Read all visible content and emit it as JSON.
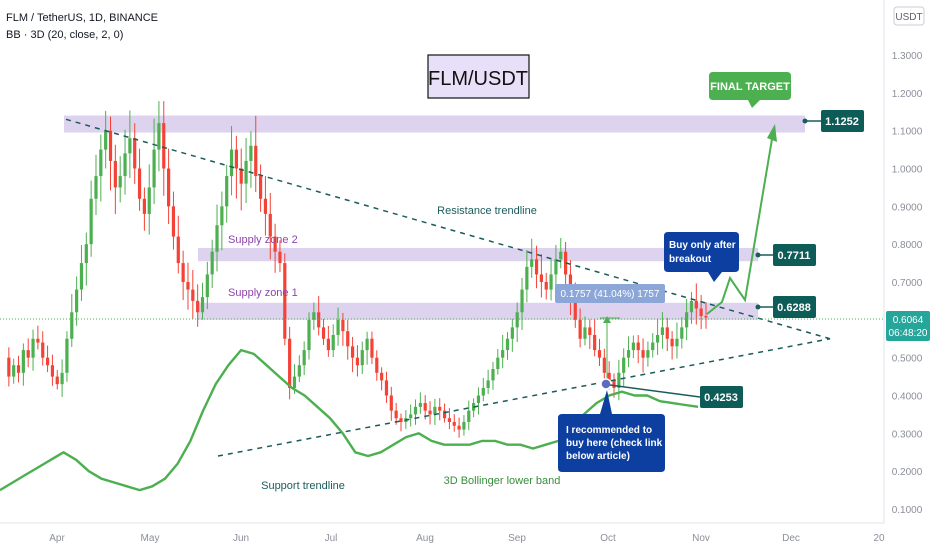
{
  "header": {
    "symbol_line": "FLM / TetherUS, 1D, BINANCE",
    "indicator_line": "BB · 3D (20, close, 2, 0)",
    "currency": "USDT"
  },
  "title_box": "FLM/USDT",
  "price_tags": {
    "final_target": "1.1252",
    "supply_2": "0.7711",
    "supply_1": "0.6288",
    "buy_point": "0.4253",
    "current_price": "0.6064",
    "countdown": "06:48:20"
  },
  "annotations": {
    "resistance": "Resistance trendline",
    "support": "Support trendline",
    "supply_zone_2": "Supply zone 2",
    "supply_zone_1": "Supply zone 1",
    "bb_lower": "3D Bollinger lower band",
    "final_target": "FINAL TARGET",
    "buy_after": [
      "Buy only after",
      "breakout"
    ],
    "recommended": [
      "I recommended to",
      "buy here (check link",
      "below article)"
    ],
    "measure": "0.1757 (41.04%) 1757"
  },
  "colors": {
    "up": "#26a69a",
    "bull_candle": "#4caf50",
    "bear_candle": "#f44336",
    "bb_band": "#4caf50",
    "zone": "#d1c4e9",
    "trendline": "#1a5c5c",
    "tag_dark": "#0d5c57",
    "tag_green": "#2e7d32",
    "callout_blue": "#0d3fa0",
    "target_green": "#4caf50",
    "measure_box": "#8ca6d8"
  },
  "chart_data": {
    "type": "candlestick",
    "y_axis": {
      "scale": "linear",
      "range": [
        0.06,
        1.4
      ],
      "ticks": [
        "0.1000",
        "0.2000",
        "0.3000",
        "0.4000",
        "0.5000",
        "0.6000",
        "0.7000",
        "0.8000",
        "0.9000",
        "1.0000",
        "1.1000",
        "1.2000",
        "1.3000"
      ],
      "position": "right"
    },
    "x_axis": {
      "ticks": [
        "Apr",
        "May",
        "Jun",
        "Jul",
        "Aug",
        "Sep",
        "Oct",
        "Nov",
        "Dec",
        "20"
      ]
    },
    "horizontal_zones": [
      {
        "label": "",
        "low": 1.095,
        "high": 1.14
      },
      {
        "label": "Supply zone 2",
        "low": 0.755,
        "high": 0.79
      },
      {
        "label": "Supply zone 1",
        "low": 0.6,
        "high": 0.645
      }
    ],
    "trendlines": [
      {
        "label": "Resistance trendline",
        "from": [
          "Apr",
          1.13
        ],
        "to": [
          "mid-Dec",
          0.55
        ]
      },
      {
        "label": "Support trendline",
        "from": [
          "late May",
          0.24
        ],
        "to": [
          "mid-Dec",
          0.55
        ]
      }
    ],
    "key_levels": [
      1.1252,
      0.7711,
      0.6288,
      0.4253,
      0.6064
    ],
    "price_path": [
      [
        0.5,
        0.45,
        0.48,
        0.46,
        0.52,
        0.5,
        0.55,
        0.54,
        0.5,
        0.48,
        0.45,
        0.43,
        0.46,
        0.55,
        0.62,
        0.68,
        0.75,
        0.8,
        0.92,
        0.98,
        1.05,
        1.1,
        1.02,
        0.95,
        0.98,
        1.04,
        1.08,
        1.0,
        0.92,
        0.88,
        0.95,
        1.05,
        1.12,
        1.0,
        0.9,
        0.82,
        0.75,
        0.7,
        0.68,
        0.65,
        0.62,
        0.66,
        0.72,
        0.78,
        0.85,
        0.9,
        0.98,
        1.05,
        1.0,
        0.96,
        1.02,
        1.06,
        0.98,
        0.92,
        0.88,
        0.82,
        0.78,
        0.75,
        0.55,
        0.42,
        0.45,
        0.48,
        0.52,
        0.6,
        0.62,
        0.58,
        0.55,
        0.52,
        0.56,
        0.6,
        0.57,
        0.53,
        0.5,
        0.48,
        0.52,
        0.55,
        0.5,
        0.46,
        0.44,
        0.4,
        0.36,
        0.34,
        0.33,
        0.34,
        0.35,
        0.37,
        0.38,
        0.36,
        0.35,
        0.37,
        0.36,
        0.34,
        0.33,
        0.32,
        0.31,
        0.33,
        0.36,
        0.38,
        0.4,
        0.42,
        0.44,
        0.47,
        0.5,
        0.52,
        0.55,
        0.58,
        0.62,
        0.68,
        0.74,
        0.76,
        0.72,
        0.7,
        0.68,
        0.72,
        0.76,
        0.78,
        0.72,
        0.65,
        0.6,
        0.55,
        0.58,
        0.56,
        0.52,
        0.5,
        0.46,
        0.44,
        0.42,
        0.46,
        0.5,
        0.52,
        0.54,
        0.52,
        0.5,
        0.52,
        0.54,
        0.56,
        0.58,
        0.55,
        0.53,
        0.55,
        0.58,
        0.62,
        0.65,
        0.63,
        0.61,
        0.6064
      ]
    ],
    "bb_lower_band": [
      0.15,
      0.17,
      0.19,
      0.21,
      0.23,
      0.25,
      0.23,
      0.2,
      0.18,
      0.17,
      0.16,
      0.15,
      0.16,
      0.18,
      0.22,
      0.28,
      0.36,
      0.43,
      0.48,
      0.52,
      0.51,
      0.48,
      0.45,
      0.42,
      0.4,
      0.37,
      0.34,
      0.3,
      0.25,
      0.24,
      0.25,
      0.27,
      0.29,
      0.3,
      0.28,
      0.27,
      0.27,
      0.27,
      0.28,
      0.28,
      0.27,
      0.27,
      0.26,
      0.27,
      0.28,
      0.31,
      0.35,
      0.38,
      0.4,
      0.41,
      0.4,
      0.4,
      0.385,
      0.38,
      0.375,
      0.37
    ]
  }
}
